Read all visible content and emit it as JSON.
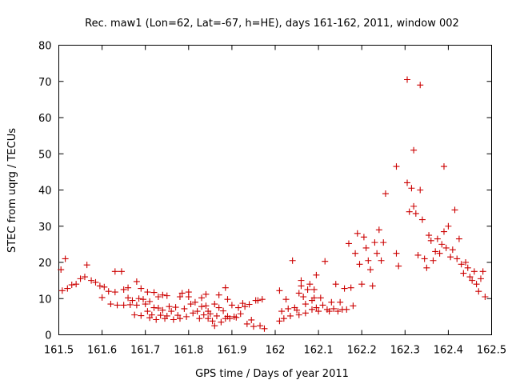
{
  "chart_data": {
    "type": "scatter",
    "title": "Rec. maw1 (Lon=62, Lat=-67, h=HE), days 161-162, 2011, window 002",
    "xlabel": "GPS time / Days of year 2011",
    "ylabel": "STEC from uqrg / TECUs",
    "xlim": [
      161.5,
      162.5
    ],
    "ylim": [
      0,
      80
    ],
    "xticks": [
      "161.5",
      "161.6",
      "161.7",
      "161.8",
      "161.9",
      "162",
      "162.1",
      "162.2",
      "162.3",
      "162.4",
      "162.5"
    ],
    "yticks": [
      "0",
      "10",
      "20",
      "30",
      "40",
      "50",
      "60",
      "70",
      "80"
    ],
    "grid": false,
    "marker": "plus",
    "color": "#cc0000",
    "series": [
      {
        "points": [
          [
            161.505,
            18
          ],
          [
            161.508,
            12.2
          ],
          [
            161.515,
            21
          ],
          [
            161.52,
            12.8
          ],
          [
            161.53,
            13.8
          ],
          [
            161.54,
            14
          ],
          [
            161.55,
            15.5
          ],
          [
            161.56,
            16
          ],
          [
            161.565,
            19.3
          ],
          [
            161.575,
            15
          ],
          [
            161.585,
            14.5
          ],
          [
            161.595,
            13.5
          ],
          [
            161.6,
            10.3
          ],
          [
            161.605,
            13.2
          ],
          [
            161.615,
            12
          ],
          [
            161.62,
            8.5
          ],
          [
            161.63,
            11.8
          ],
          [
            161.63,
            17.5
          ],
          [
            161.635,
            8.2
          ],
          [
            161.645,
            17.5
          ],
          [
            161.65,
            12.5
          ],
          [
            161.65,
            8.2
          ],
          [
            161.66,
            13
          ],
          [
            161.66,
            10.2
          ],
          [
            161.665,
            8.3
          ],
          [
            161.67,
            9.5
          ],
          [
            161.675,
            5.5
          ],
          [
            161.68,
            14.7
          ],
          [
            161.68,
            8.2
          ],
          [
            161.685,
            10
          ],
          [
            161.69,
            12.8
          ],
          [
            161.69,
            5.3
          ],
          [
            161.695,
            9.8
          ],
          [
            161.7,
            8.5
          ],
          [
            161.705,
            11.8
          ],
          [
            161.705,
            6.5
          ],
          [
            161.71,
            9.2
          ],
          [
            161.71,
            4.7
          ],
          [
            161.715,
            5.5
          ],
          [
            161.72,
            11.7
          ],
          [
            161.72,
            7.5
          ],
          [
            161.725,
            4.2
          ],
          [
            161.73,
            10.5
          ],
          [
            161.73,
            7.4
          ],
          [
            161.735,
            5.4
          ],
          [
            161.74,
            11
          ],
          [
            161.74,
            6.8
          ],
          [
            161.745,
            4.5
          ],
          [
            161.75,
            10.8
          ],
          [
            161.75,
            5.2
          ],
          [
            161.755,
            7.8
          ],
          [
            161.76,
            6.5
          ],
          [
            161.765,
            4.2
          ],
          [
            161.77,
            7.6
          ],
          [
            161.775,
            5.4
          ],
          [
            161.78,
            10.5
          ],
          [
            161.78,
            4.5
          ],
          [
            161.785,
            11.5
          ],
          [
            161.79,
            7.2
          ],
          [
            161.795,
            5
          ],
          [
            161.8,
            11.8
          ],
          [
            161.8,
            10.5
          ],
          [
            161.805,
            8.5
          ],
          [
            161.81,
            6
          ],
          [
            161.815,
            9
          ],
          [
            161.82,
            6.5
          ],
          [
            161.825,
            4.5
          ],
          [
            161.83,
            10.2
          ],
          [
            161.83,
            7.8
          ],
          [
            161.835,
            5.5
          ],
          [
            161.84,
            11.2
          ],
          [
            161.84,
            8
          ],
          [
            161.845,
            6.5
          ],
          [
            161.845,
            4.5
          ],
          [
            161.85,
            5.8
          ],
          [
            161.855,
            3.8
          ],
          [
            161.86,
            8.5
          ],
          [
            161.86,
            2.5
          ],
          [
            161.865,
            5.2
          ],
          [
            161.87,
            11
          ],
          [
            161.87,
            7.5
          ],
          [
            161.875,
            3.5
          ],
          [
            161.88,
            6.6
          ],
          [
            161.885,
            13
          ],
          [
            161.885,
            4.5
          ],
          [
            161.89,
            9.8
          ],
          [
            161.89,
            5.1
          ],
          [
            161.895,
            4.5
          ],
          [
            161.9,
            8.2
          ],
          [
            161.905,
            5
          ],
          [
            161.91,
            4.8
          ],
          [
            161.915,
            7.5
          ],
          [
            161.92,
            5.8
          ],
          [
            161.925,
            8.7
          ],
          [
            161.93,
            7.8
          ],
          [
            161.935,
            3
          ],
          [
            161.94,
            8.4
          ],
          [
            161.945,
            4.1
          ],
          [
            161.95,
            2.3
          ],
          [
            161.955,
            9.5
          ],
          [
            161.96,
            9.5
          ],
          [
            161.965,
            2.5
          ],
          [
            161.97,
            9.8
          ],
          [
            161.975,
            1.7
          ],
          [
            162.01,
            12.2
          ],
          [
            162.01,
            3.8
          ],
          [
            162.015,
            6.5
          ],
          [
            162.02,
            4.5
          ],
          [
            162.025,
            9.8
          ],
          [
            162.03,
            7.2
          ],
          [
            162.035,
            5.2
          ],
          [
            162.04,
            20.5
          ],
          [
            162.045,
            7.5
          ],
          [
            162.05,
            6.8
          ],
          [
            162.055,
            5.5
          ],
          [
            162.055,
            11.5
          ],
          [
            162.06,
            15
          ],
          [
            162.06,
            13.5
          ],
          [
            162.065,
            10.5
          ],
          [
            162.07,
            8.5
          ],
          [
            162.07,
            6
          ],
          [
            162.075,
            12.5
          ],
          [
            162.08,
            14
          ],
          [
            162.085,
            9.5
          ],
          [
            162.085,
            7
          ],
          [
            162.09,
            12.5
          ],
          [
            162.09,
            10.2
          ],
          [
            162.095,
            16.5
          ],
          [
            162.095,
            7.5
          ],
          [
            162.1,
            6.5
          ],
          [
            162.105,
            10.2
          ],
          [
            162.11,
            8.2
          ],
          [
            162.115,
            20.3
          ],
          [
            162.12,
            7
          ],
          [
            162.125,
            6.5
          ],
          [
            162.13,
            9
          ],
          [
            162.135,
            7.2
          ],
          [
            162.14,
            14
          ],
          [
            162.145,
            6.5
          ],
          [
            162.15,
            9
          ],
          [
            162.155,
            7
          ],
          [
            162.16,
            12.8
          ],
          [
            162.165,
            7
          ],
          [
            162.17,
            25.2
          ],
          [
            162.175,
            13
          ],
          [
            162.18,
            8
          ],
          [
            162.185,
            22.5
          ],
          [
            162.19,
            28
          ],
          [
            162.195,
            19.5
          ],
          [
            162.2,
            14
          ],
          [
            162.205,
            27
          ],
          [
            162.21,
            24
          ],
          [
            162.215,
            20.5
          ],
          [
            162.22,
            18
          ],
          [
            162.225,
            13.5
          ],
          [
            162.23,
            25.5
          ],
          [
            162.235,
            22.5
          ],
          [
            162.24,
            29
          ],
          [
            162.245,
            20.5
          ],
          [
            162.25,
            25.5
          ],
          [
            162.255,
            39
          ],
          [
            162.28,
            46.5
          ],
          [
            162.28,
            22.5
          ],
          [
            162.285,
            19
          ],
          [
            162.305,
            70.5
          ],
          [
            162.305,
            42
          ],
          [
            162.31,
            34
          ],
          [
            162.315,
            40.5
          ],
          [
            162.32,
            51
          ],
          [
            162.32,
            35.5
          ],
          [
            162.325,
            33.5
          ],
          [
            162.33,
            22
          ],
          [
            162.335,
            69
          ],
          [
            162.335,
            40
          ],
          [
            162.34,
            31.8
          ],
          [
            162.345,
            21
          ],
          [
            162.35,
            18.5
          ],
          [
            162.355,
            27.5
          ],
          [
            162.36,
            26
          ],
          [
            162.365,
            20.5
          ],
          [
            162.37,
            23
          ],
          [
            162.375,
            26.5
          ],
          [
            162.38,
            22.5
          ],
          [
            162.385,
            25
          ],
          [
            162.39,
            46.5
          ],
          [
            162.39,
            28.5
          ],
          [
            162.395,
            24
          ],
          [
            162.4,
            30
          ],
          [
            162.405,
            21.5
          ],
          [
            162.41,
            23.5
          ],
          [
            162.415,
            34.5
          ],
          [
            162.42,
            21
          ],
          [
            162.425,
            26.5
          ],
          [
            162.43,
            19.5
          ],
          [
            162.435,
            17
          ],
          [
            162.44,
            20
          ],
          [
            162.445,
            18.5
          ],
          [
            162.45,
            16
          ],
          [
            162.455,
            15
          ],
          [
            162.46,
            17.5
          ],
          [
            162.465,
            14
          ],
          [
            162.47,
            12
          ],
          [
            162.475,
            15.5
          ],
          [
            162.48,
            17.5
          ],
          [
            162.485,
            10.5
          ]
        ]
      }
    ]
  }
}
